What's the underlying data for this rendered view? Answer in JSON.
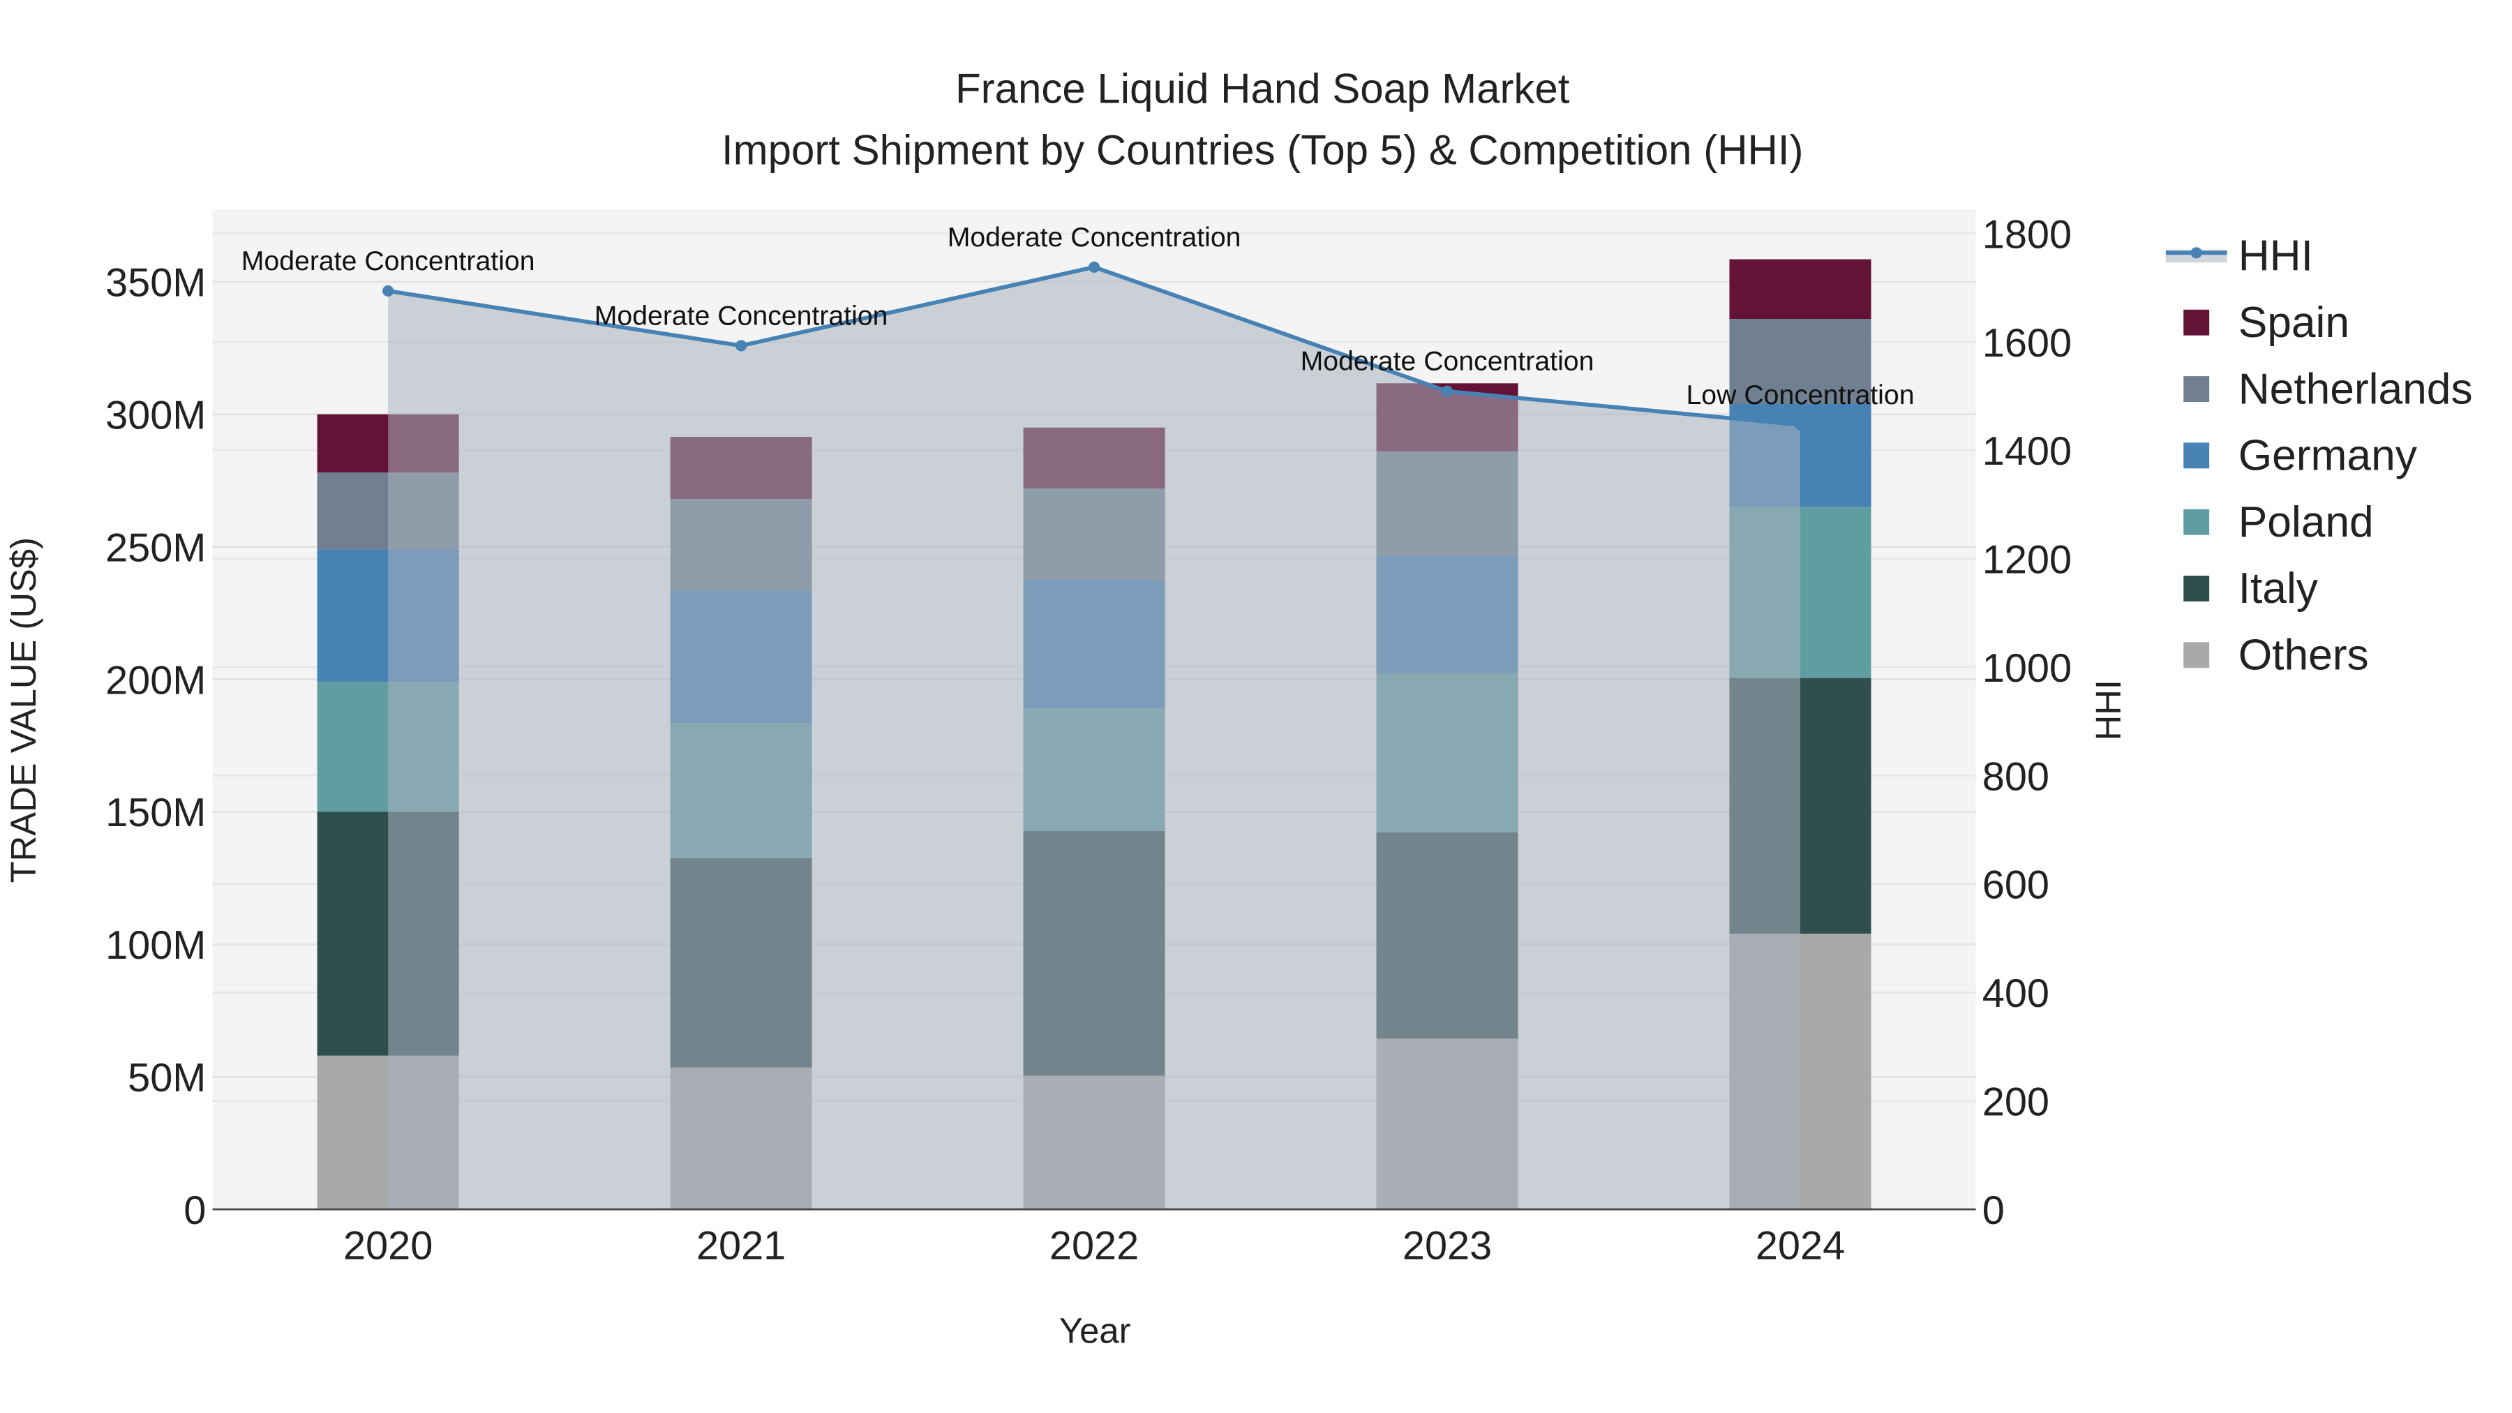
{
  "chart_data": {
    "type": "bar",
    "title": "France Liquid Hand Soap Market",
    "subtitle": "Import Shipment by Countries (Top 5) & Competition (HHI)",
    "xlabel": "Year",
    "ylabel": "TRADE VALUE (US$)",
    "y2label": "HHI",
    "categories": [
      "2020",
      "2021",
      "2022",
      "2023",
      "2024"
    ],
    "ylim": [
      0,
      370
    ],
    "yticks": [
      0,
      50,
      100,
      150,
      200,
      250,
      300,
      350
    ],
    "ytick_labels": [
      "0",
      "50M",
      "100M",
      "150M",
      "200M",
      "250M",
      "300M",
      "350M"
    ],
    "y2lim": [
      0,
      1850
    ],
    "y2ticks": [
      0,
      200,
      400,
      600,
      800,
      1000,
      1200,
      1400,
      1600,
      1800
    ],
    "y2tick_labels": [
      "0",
      "200",
      "400",
      "600",
      "800",
      "1000",
      "1200",
      "1400",
      "1600",
      "1800"
    ],
    "grid": true,
    "legend_position": "right",
    "series": [
      {
        "name": "Others",
        "color": "#A9A9A9",
        "values": [
          58,
          53.5,
          50.4,
          64.4,
          104
        ]
      },
      {
        "name": "Italy",
        "color": "#2F4F4F",
        "values": [
          92,
          79,
          92.4,
          77.8,
          96.5
        ]
      },
      {
        "name": "Poland",
        "color": "#5F9EA0",
        "values": [
          49,
          51,
          46.2,
          60.1,
          64.5
        ]
      },
      {
        "name": "Germany",
        "color": "#4682B4",
        "values": [
          50,
          50,
          48.5,
          44.4,
          39
        ]
      },
      {
        "name": "Netherlands",
        "color": "#708090",
        "values": [
          29,
          34.5,
          34.5,
          39.3,
          32
        ]
      },
      {
        "name": "Spain",
        "color": "#631336",
        "values": [
          22,
          23.5,
          23,
          25.7,
          22.5
        ]
      }
    ],
    "line": {
      "name": "HHI",
      "color": "#4682B4",
      "values": [
        1694,
        1593,
        1738,
        1509,
        1447
      ],
      "annotations": [
        "Moderate Concentration",
        "Moderate Concentration",
        "Moderate Concentration",
        "Moderate Concentration",
        "Low Concentration"
      ]
    },
    "legend": [
      "HHI",
      "Spain",
      "Netherlands",
      "Germany",
      "Poland",
      "Italy",
      "Others"
    ]
  }
}
